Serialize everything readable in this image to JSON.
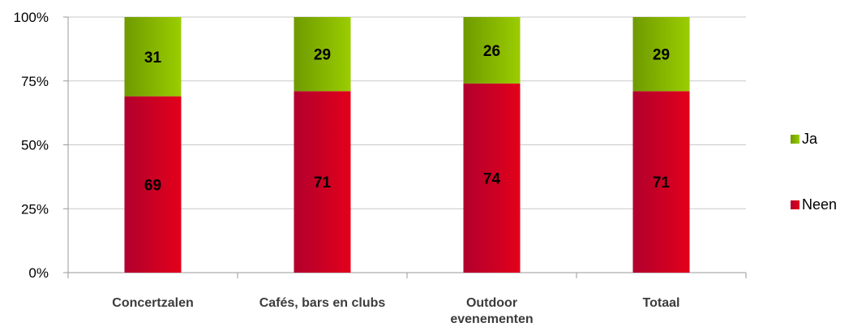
{
  "chart_data": {
    "type": "bar",
    "stacked": true,
    "percent": true,
    "categories": [
      [
        "Concertzalen"
      ],
      [
        "Cafés, bars en clubs"
      ],
      [
        "Outdoor",
        "evenementen"
      ],
      [
        "Totaal"
      ]
    ],
    "series": [
      {
        "name": "Neen",
        "values": [
          69,
          71,
          74,
          71
        ],
        "color": "#e3001b",
        "color_dark": "#b1002d"
      },
      {
        "name": "Ja",
        "values": [
          31,
          29,
          26,
          29
        ],
        "color": "#9acd00",
        "color_dark": "#6f9a00"
      }
    ],
    "y_ticks": [
      "0%",
      "25%",
      "50%",
      "75%",
      "100%"
    ],
    "ylim": [
      0,
      100
    ],
    "grid": true,
    "legend_position": "right",
    "legend_order": [
      "Ja",
      "Neen"
    ]
  }
}
